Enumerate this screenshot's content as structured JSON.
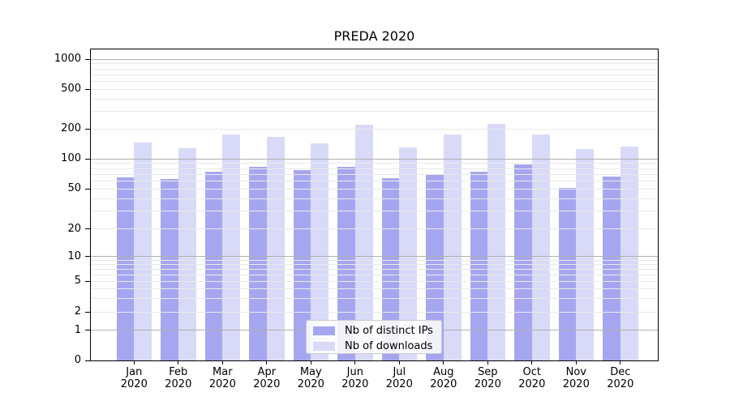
{
  "title": "PREDA 2020",
  "legend": {
    "items": [
      {
        "key": "distinct-ips",
        "label": "Nb of distinct IPs",
        "color": "#a6a6f0"
      },
      {
        "key": "downloads",
        "label": "Nb of downloads",
        "color": "#d9d9f8"
      }
    ]
  },
  "style": {
    "bar_color_distinct_ips": "#a6a6f0",
    "bar_color_downloads": "#d9d9f8",
    "grid_major_color": "#b0b0b0",
    "grid_minor_color": "#e9e9e9",
    "axis_color": "#000000"
  },
  "chart_data": {
    "type": "bar",
    "title": "PREDA 2020",
    "categories": [
      "Jan 2020",
      "Feb 2020",
      "Mar 2020",
      "Apr 2020",
      "May 2020",
      "Jun 2020",
      "Jul 2020",
      "Aug 2020",
      "Sep 2020",
      "Oct 2020",
      "Nov 2020",
      "Dec 2020"
    ],
    "series": [
      {
        "name": "Nb of distinct IPs",
        "key": "distinct-ips",
        "color": "#a6a6f0",
        "values": [
          65,
          63,
          75,
          84,
          77,
          83,
          64,
          70,
          75,
          89,
          51,
          67
        ]
      },
      {
        "name": "Nb of downloads",
        "key": "downloads",
        "color": "#d9d9f8",
        "values": [
          147,
          129,
          175,
          167,
          143,
          220,
          131,
          177,
          224,
          177,
          127,
          133
        ]
      }
    ],
    "xlabel": "",
    "ylabel": "",
    "yscale": "symlog",
    "y_ticks": [
      0,
      1,
      2,
      5,
      10,
      20,
      50,
      100,
      200,
      500,
      1000
    ],
    "y_minor_gridlines": [
      2,
      3,
      4,
      5,
      6,
      7,
      8,
      9,
      20,
      30,
      40,
      50,
      60,
      70,
      80,
      90,
      200,
      300,
      400,
      500,
      600,
      700,
      800,
      900
    ],
    "y_major_gridlines": [
      1,
      10,
      100,
      1000
    ],
    "ylim": [
      0,
      1150
    ],
    "grid": true,
    "grid_above_bars": true,
    "legend_position": "lower center"
  }
}
